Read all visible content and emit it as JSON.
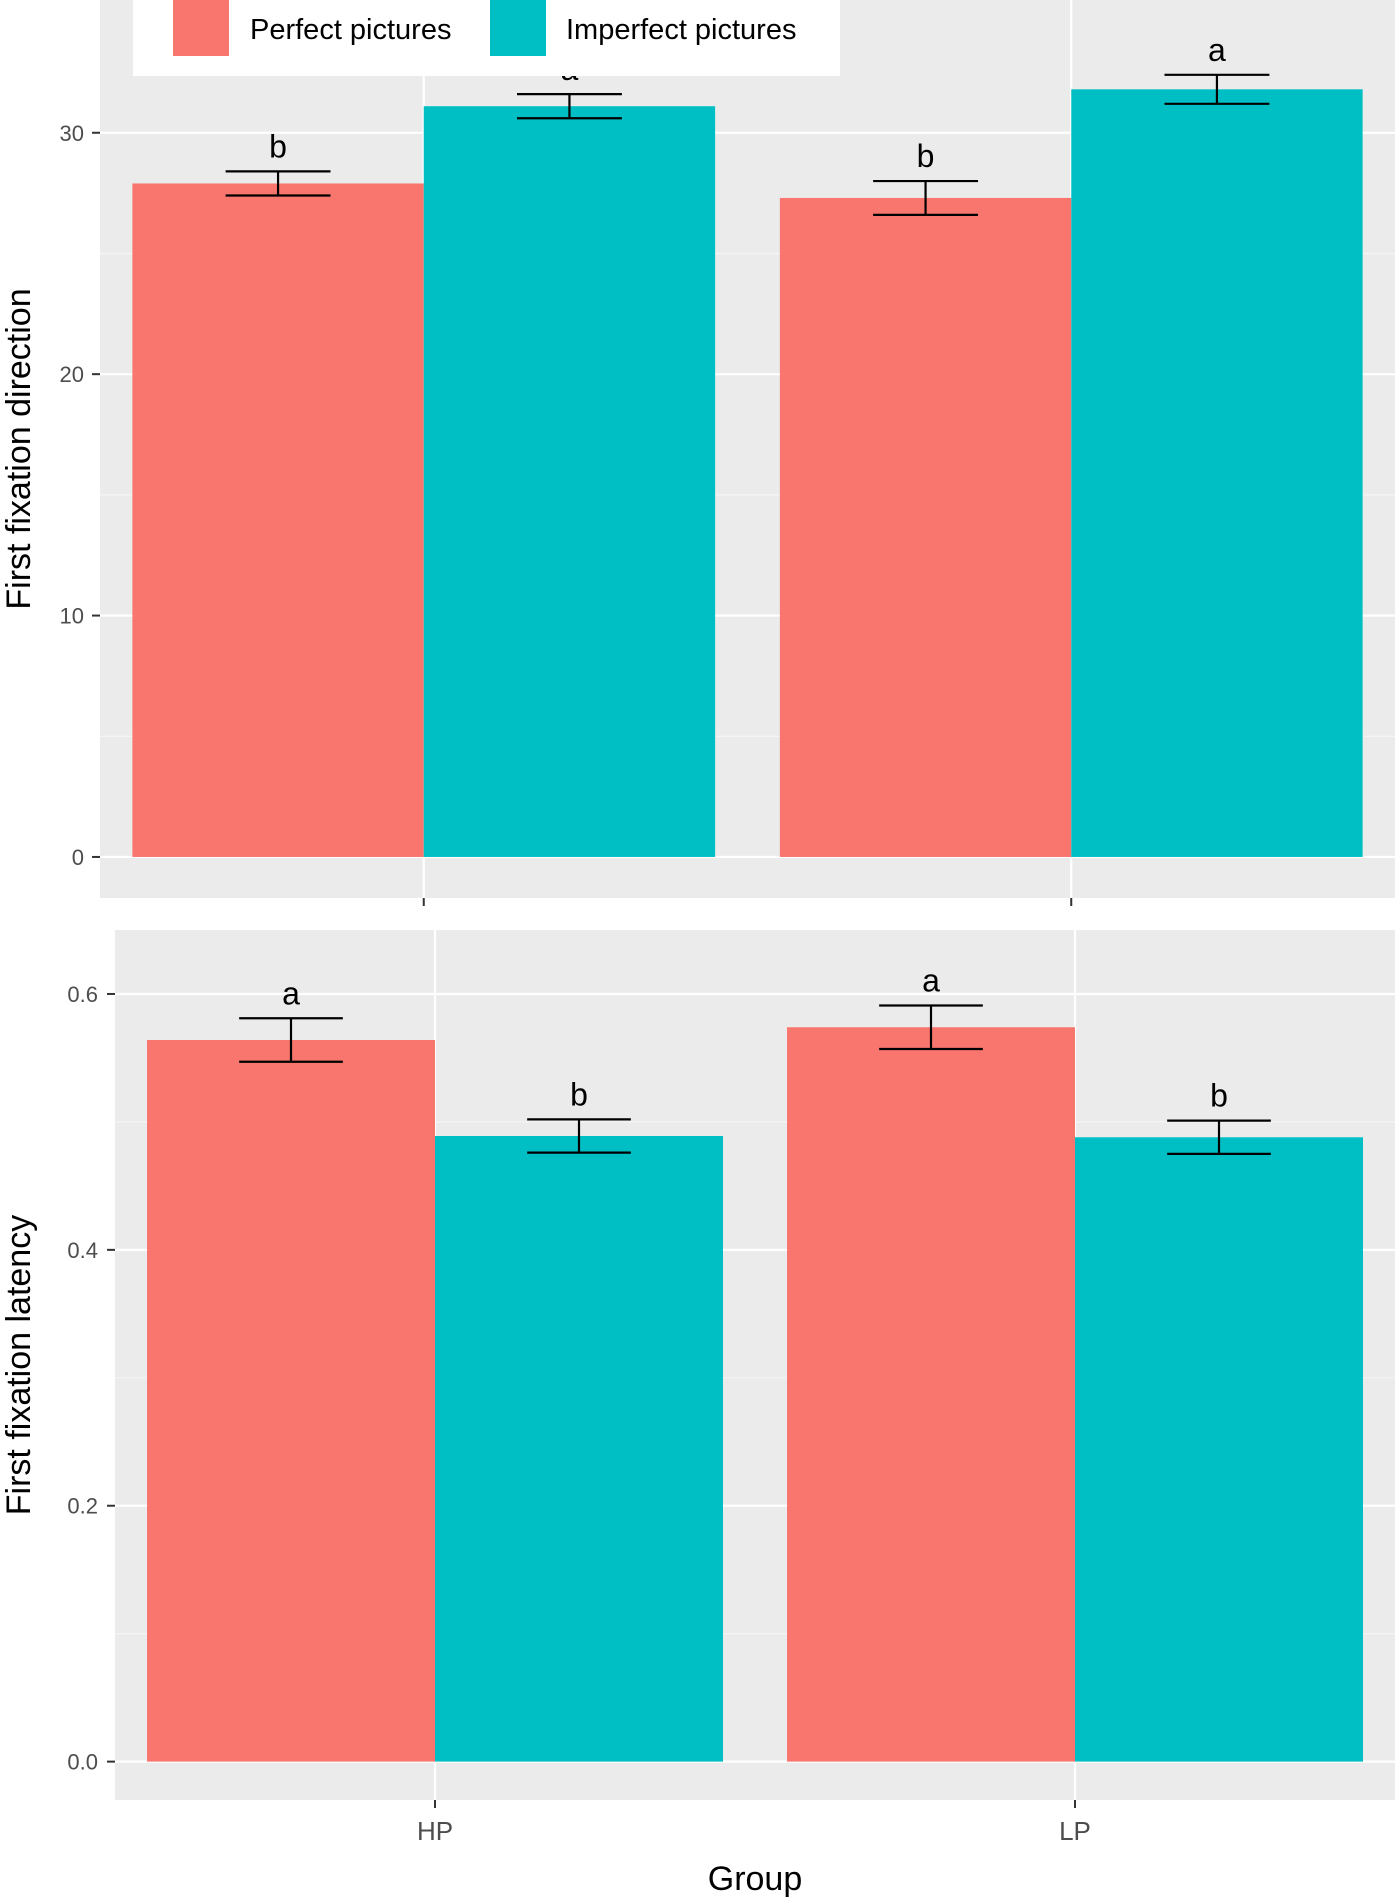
{
  "chart_data": [
    {
      "type": "bar",
      "title": "",
      "xlabel": "",
      "ylabel": "First fixation direction",
      "categories": [
        "HP",
        "LP"
      ],
      "show_x_tick_labels": false,
      "ylim": [
        -1.7,
        35.5
      ],
      "yticks": [
        0,
        10,
        20,
        30
      ],
      "ytick_labels": [
        "0",
        "10",
        "20",
        "30"
      ],
      "grid": true,
      "series": [
        {
          "name": "Perfect pictures",
          "color": "#F8766D",
          "values": [
            27.9,
            27.3
          ],
          "error": [
            0.5,
            0.7
          ],
          "labels": [
            "b",
            "b"
          ]
        },
        {
          "name": "Imperfect pictures",
          "color": "#00BFC4",
          "values": [
            31.1,
            31.8
          ],
          "error": [
            0.5,
            0.6
          ],
          "labels": [
            "a",
            "a"
          ]
        }
      ]
    },
    {
      "type": "bar",
      "title": "",
      "xlabel": "Group",
      "ylabel": "First fixation latency",
      "categories": [
        "HP",
        "LP"
      ],
      "show_x_tick_labels": true,
      "ylim": [
        -0.03,
        0.65
      ],
      "yticks": [
        0.0,
        0.2,
        0.4,
        0.6
      ],
      "ytick_labels": [
        "0.0",
        "0.2",
        "0.4",
        "0.6"
      ],
      "grid": true,
      "series": [
        {
          "name": "Perfect pictures",
          "color": "#F8766D",
          "values": [
            0.564,
            0.574
          ],
          "error": [
            0.017,
            0.017
          ],
          "labels": [
            "a",
            "a"
          ]
        },
        {
          "name": "Imperfect pictures",
          "color": "#00BFC4",
          "values": [
            0.489,
            0.488
          ],
          "error": [
            0.013,
            0.013
          ],
          "labels": [
            "b",
            "b"
          ]
        }
      ]
    }
  ],
  "legend": {
    "position": "top",
    "items": [
      {
        "label": "Perfect pictures",
        "color": "#F8766D"
      },
      {
        "label": "Imperfect pictures",
        "color": "#00BFC4"
      }
    ]
  }
}
